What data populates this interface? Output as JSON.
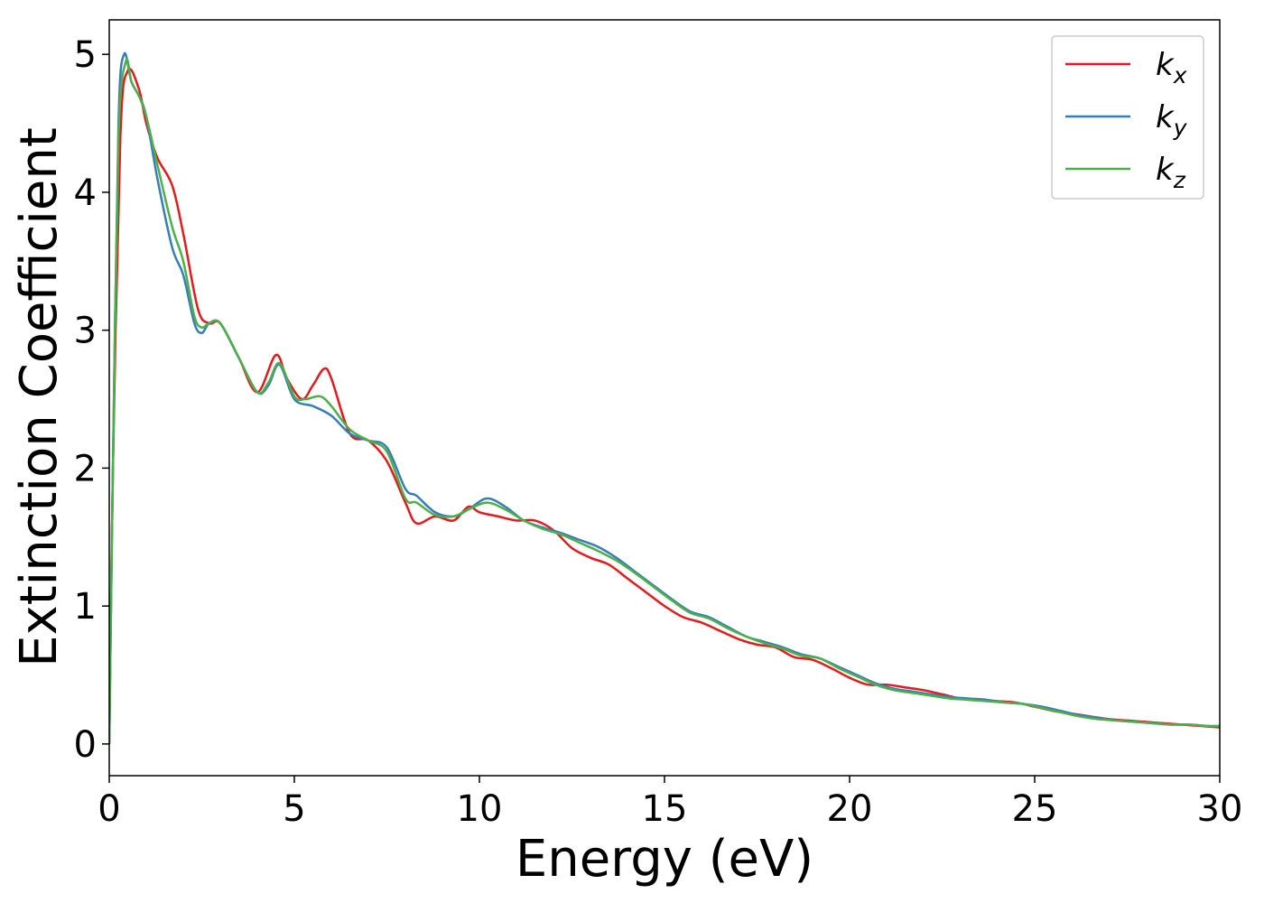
{
  "chart_data": {
    "type": "line",
    "title": "",
    "xlabel": "Energy (eV)",
    "ylabel": "Extinction Coefficient",
    "xlim": [
      0,
      30
    ],
    "ylim": [
      -0.23,
      5.25
    ],
    "xticks": [
      0,
      5,
      10,
      15,
      20,
      25,
      30
    ],
    "yticks": [
      0,
      1,
      2,
      3,
      4,
      5
    ],
    "grid": false,
    "legend_position": "top-right",
    "series": [
      {
        "name": "k",
        "subscript": "x",
        "color": "#e41a1c",
        "x": [
          0,
          0.1,
          0.3,
          0.5,
          0.8,
          1.0,
          1.3,
          1.7,
          2.0,
          2.4,
          2.7,
          3.0,
          3.5,
          4.0,
          4.5,
          4.8,
          5.2,
          5.5,
          5.8,
          6.0,
          6.5,
          7.0,
          7.5,
          8.0,
          8.3,
          8.8,
          9.3,
          9.7,
          10.0,
          10.5,
          11.0,
          11.5,
          12.0,
          12.5,
          13.0,
          13.5,
          14.0,
          14.5,
          15.0,
          15.5,
          16.0,
          16.5,
          17.0,
          17.5,
          18.0,
          18.5,
          19.0,
          19.5,
          20.0,
          20.5,
          21.0,
          21.5,
          22.0,
          22.5,
          23.0,
          23.5,
          24.0,
          24.5,
          25.0,
          25.5,
          26.0,
          26.5,
          27.0,
          27.5,
          28.0,
          28.5,
          29.0,
          29.5,
          30.0
        ],
        "y": [
          0,
          2.0,
          4.4,
          4.88,
          4.75,
          4.5,
          4.25,
          4.05,
          3.7,
          3.15,
          3.05,
          3.05,
          2.8,
          2.55,
          2.82,
          2.65,
          2.5,
          2.6,
          2.72,
          2.65,
          2.25,
          2.2,
          2.05,
          1.75,
          1.6,
          1.65,
          1.62,
          1.72,
          1.68,
          1.65,
          1.62,
          1.62,
          1.55,
          1.42,
          1.35,
          1.3,
          1.2,
          1.1,
          1.0,
          0.92,
          0.88,
          0.82,
          0.76,
          0.72,
          0.7,
          0.63,
          0.61,
          0.55,
          0.48,
          0.43,
          0.43,
          0.41,
          0.39,
          0.36,
          0.33,
          0.32,
          0.31,
          0.3,
          0.27,
          0.24,
          0.22,
          0.2,
          0.18,
          0.17,
          0.16,
          0.15,
          0.14,
          0.13,
          0.12
        ]
      },
      {
        "name": "k",
        "subscript": "y",
        "color": "#377eb8",
        "x": [
          0,
          0.1,
          0.25,
          0.4,
          0.6,
          0.8,
          1.0,
          1.3,
          1.7,
          2.0,
          2.3,
          2.5,
          2.7,
          3.0,
          3.5,
          4.0,
          4.3,
          4.6,
          5.0,
          5.5,
          6.0,
          6.5,
          7.0,
          7.5,
          8.0,
          8.3,
          8.8,
          9.3,
          9.7,
          10.2,
          10.7,
          11.2,
          11.7,
          12.2,
          12.7,
          13.2,
          13.7,
          14.2,
          14.7,
          15.2,
          15.7,
          16.2,
          16.7,
          17.2,
          17.7,
          18.2,
          18.7,
          19.2,
          19.7,
          20.2,
          20.7,
          21.2,
          21.7,
          22.2,
          22.7,
          23.2,
          23.7,
          24.2,
          24.7,
          25.2,
          25.7,
          26.2,
          26.7,
          27.2,
          27.7,
          28.2,
          28.7,
          29.2,
          29.7,
          30.0
        ],
        "y": [
          0,
          2.0,
          4.5,
          5.0,
          4.8,
          4.7,
          4.55,
          4.1,
          3.6,
          3.4,
          3.05,
          2.98,
          3.05,
          3.05,
          2.8,
          2.55,
          2.6,
          2.75,
          2.5,
          2.45,
          2.38,
          2.25,
          2.2,
          2.15,
          1.85,
          1.8,
          1.68,
          1.65,
          1.7,
          1.78,
          1.72,
          1.62,
          1.57,
          1.53,
          1.48,
          1.43,
          1.35,
          1.25,
          1.15,
          1.05,
          0.96,
          0.92,
          0.85,
          0.78,
          0.74,
          0.7,
          0.65,
          0.62,
          0.56,
          0.5,
          0.44,
          0.4,
          0.38,
          0.36,
          0.34,
          0.33,
          0.32,
          0.3,
          0.29,
          0.27,
          0.24,
          0.21,
          0.19,
          0.17,
          0.16,
          0.15,
          0.14,
          0.14,
          0.13,
          0.13
        ]
      },
      {
        "name": "k",
        "subscript": "z",
        "color": "#4daf4a",
        "x": [
          0,
          0.1,
          0.25,
          0.45,
          0.6,
          0.8,
          1.0,
          1.3,
          1.7,
          2.0,
          2.3,
          2.5,
          2.7,
          3.0,
          3.5,
          4.0,
          4.3,
          4.6,
          5.0,
          5.3,
          5.7,
          6.0,
          6.5,
          7.0,
          7.5,
          8.0,
          8.3,
          8.8,
          9.3,
          9.7,
          10.2,
          10.7,
          11.2,
          11.7,
          12.2,
          12.7,
          13.2,
          13.7,
          14.2,
          14.7,
          15.2,
          15.7,
          16.2,
          16.7,
          17.2,
          17.7,
          18.2,
          18.7,
          19.2,
          19.7,
          20.2,
          20.7,
          21.2,
          21.7,
          22.2,
          22.7,
          23.2,
          23.7,
          24.2,
          24.7,
          25.2,
          25.7,
          26.2,
          26.7,
          27.2,
          27.7,
          28.2,
          28.7,
          29.2,
          29.7,
          30.0
        ],
        "y": [
          0,
          2.0,
          4.4,
          4.95,
          4.8,
          4.7,
          4.55,
          4.2,
          3.75,
          3.5,
          3.1,
          3.02,
          3.05,
          3.05,
          2.8,
          2.55,
          2.62,
          2.76,
          2.52,
          2.5,
          2.52,
          2.45,
          2.28,
          2.2,
          2.12,
          1.78,
          1.75,
          1.66,
          1.65,
          1.7,
          1.75,
          1.7,
          1.62,
          1.56,
          1.52,
          1.46,
          1.4,
          1.33,
          1.24,
          1.14,
          1.04,
          0.95,
          0.91,
          0.84,
          0.78,
          0.73,
          0.69,
          0.64,
          0.62,
          0.55,
          0.49,
          0.43,
          0.39,
          0.37,
          0.35,
          0.33,
          0.32,
          0.31,
          0.3,
          0.29,
          0.26,
          0.23,
          0.2,
          0.18,
          0.17,
          0.16,
          0.15,
          0.14,
          0.14,
          0.13,
          0.13
        ]
      }
    ]
  }
}
